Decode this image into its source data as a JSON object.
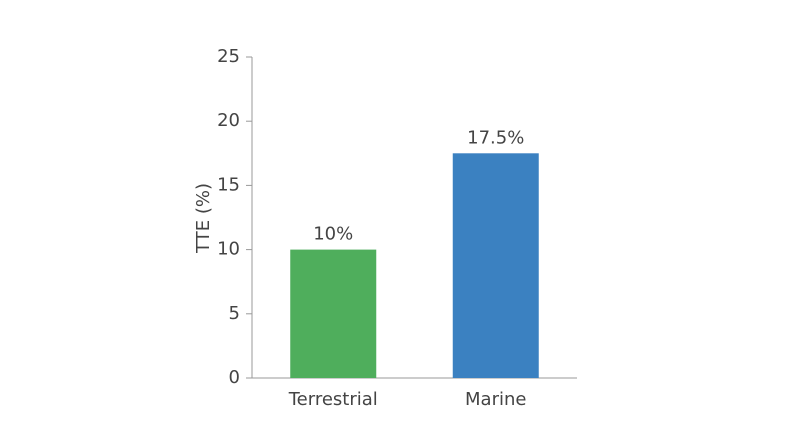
{
  "chart_data": {
    "type": "bar",
    "y_label": "TTE (%)",
    "categories": [
      "Terrestrial",
      "Marine"
    ],
    "values": [
      10,
      17.5
    ],
    "value_labels": [
      "10%",
      "17.5%"
    ],
    "colors": [
      "#4fae5c",
      "#3b81c1"
    ],
    "ylim": [
      0,
      25
    ],
    "yticks": [
      0,
      5,
      10,
      15,
      20,
      25
    ],
    "grid": false
  }
}
